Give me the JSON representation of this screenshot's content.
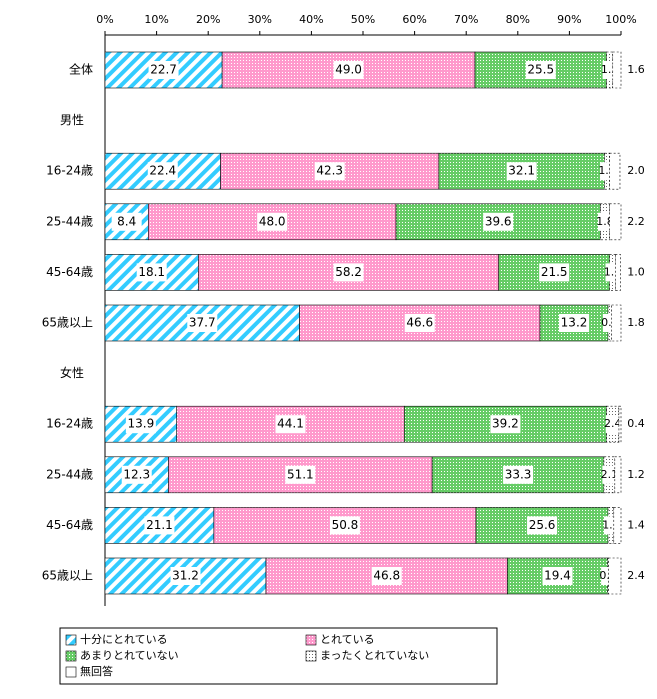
{
  "chart_data": {
    "type": "stacked-bar-horizontal",
    "categories": [
      "全体",
      "男性",
      "16-24歳",
      "25-44歳",
      "45-64歳",
      "65歳以上",
      "女性",
      "16-24歳",
      "25-44歳",
      "45-64歳",
      "65歳以上"
    ],
    "xlim": [
      0,
      100
    ],
    "xticks": [
      {
        "value": 0,
        "label": "0%"
      },
      {
        "value": 10,
        "label": "10%"
      },
      {
        "value": 20,
        "label": "20%"
      },
      {
        "value": 30,
        "label": "30%"
      },
      {
        "value": 40,
        "label": "40%"
      },
      {
        "value": 50,
        "label": "50%"
      },
      {
        "value": 60,
        "label": "60%"
      },
      {
        "value": 70,
        "label": "70%"
      },
      {
        "value": 80,
        "label": "80%"
      },
      {
        "value": 90,
        "label": "90%"
      },
      {
        "value": 100,
        "label": "100%"
      }
    ],
    "series": [
      {
        "name": "十分にとれている",
        "color": "#33ccff",
        "pattern": "stripes",
        "values": [
          22.7,
          null,
          22.4,
          8.4,
          18.1,
          37.7,
          null,
          13.9,
          12.3,
          21.1,
          31.2
        ],
        "value_labels": [
          "22.7",
          null,
          "22.4",
          "8.4",
          "18.1",
          "37.7",
          null,
          "13.9",
          "12.3",
          "21.1",
          "31.2"
        ]
      },
      {
        "name": "とれている",
        "color": "#ff99cc",
        "pattern": "dots",
        "values": [
          49.0,
          null,
          42.3,
          48.0,
          58.2,
          46.6,
          null,
          44.1,
          51.1,
          50.8,
          46.8
        ],
        "value_labels": [
          "49.0",
          null,
          "42.3",
          "48.0",
          "58.2",
          "46.6",
          null,
          "44.1",
          "51.1",
          "50.8",
          "46.8"
        ]
      },
      {
        "name": "あまりとれていない",
        "color": "#66cc66",
        "pattern": "dots",
        "values": [
          25.5,
          null,
          32.1,
          39.6,
          21.5,
          13.2,
          null,
          39.2,
          33.3,
          25.6,
          19.4
        ],
        "value_labels": [
          "25.5",
          null,
          "32.1",
          "39.6",
          "21.5",
          "13.2",
          null,
          "39.2",
          "33.3",
          "25.6",
          "19.4"
        ]
      },
      {
        "name": "まったくとれていない",
        "color": "#ffffff",
        "pattern": "dots",
        "values": [
          1.2,
          null,
          1.0,
          1.8,
          1.1,
          0.7,
          null,
          2.4,
          2.1,
          1.1,
          0.2
        ],
        "value_labels": [
          "1.2",
          null,
          "1.0",
          "1.8",
          "1.1",
          "0.7",
          null,
          "2.4",
          "2.1",
          "1.1",
          "0.2"
        ]
      },
      {
        "name": "無回答",
        "color": "#ffffff",
        "pattern": "none",
        "values": [
          1.6,
          null,
          2.0,
          2.2,
          1.0,
          1.8,
          null,
          0.4,
          1.2,
          1.4,
          2.4
        ],
        "value_labels": [
          "1.6",
          null,
          "2.0",
          "2.2",
          "1.0",
          "1.8",
          null,
          "0.4",
          "1.2",
          "1.4",
          "2.4"
        ]
      }
    ]
  }
}
